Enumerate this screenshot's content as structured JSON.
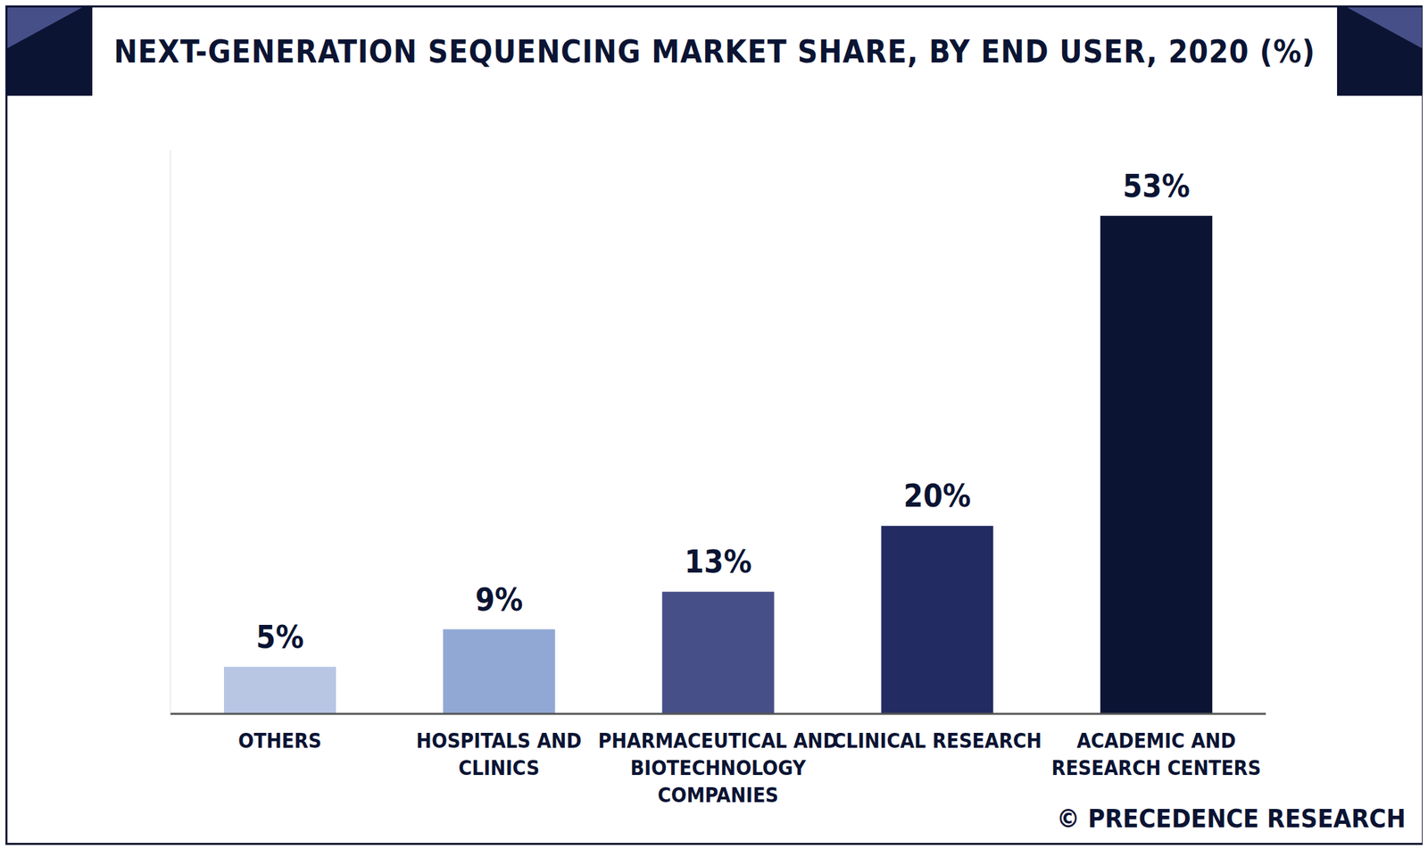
{
  "chart_data": {
    "type": "bar",
    "title": "NEXT-GENERATION SEQUENCING MARKET SHARE, BY END USER, 2020 (%)",
    "categories": [
      "OTHERS",
      "HOSPITALS AND CLINICS",
      "PHARMACEUTICAL AND BIOTECHNOLOGY COMPANIES",
      "CLINICAL RESEARCH",
      "ACADEMIC AND RESEARCH CENTERS"
    ],
    "values": [
      5,
      9,
      13,
      20,
      53
    ],
    "value_labels": [
      "5%",
      "9%",
      "13%",
      "20%",
      "53%"
    ],
    "colors": [
      "#b8c6e4",
      "#91a8d4",
      "#464f87",
      "#232b63",
      "#0b1433"
    ],
    "ylim": [
      0,
      60
    ],
    "data_labels": true,
    "tick_labels": "x",
    "grid": false,
    "annotations": [
      "© PRECEDENCE RESEARCH"
    ]
  }
}
